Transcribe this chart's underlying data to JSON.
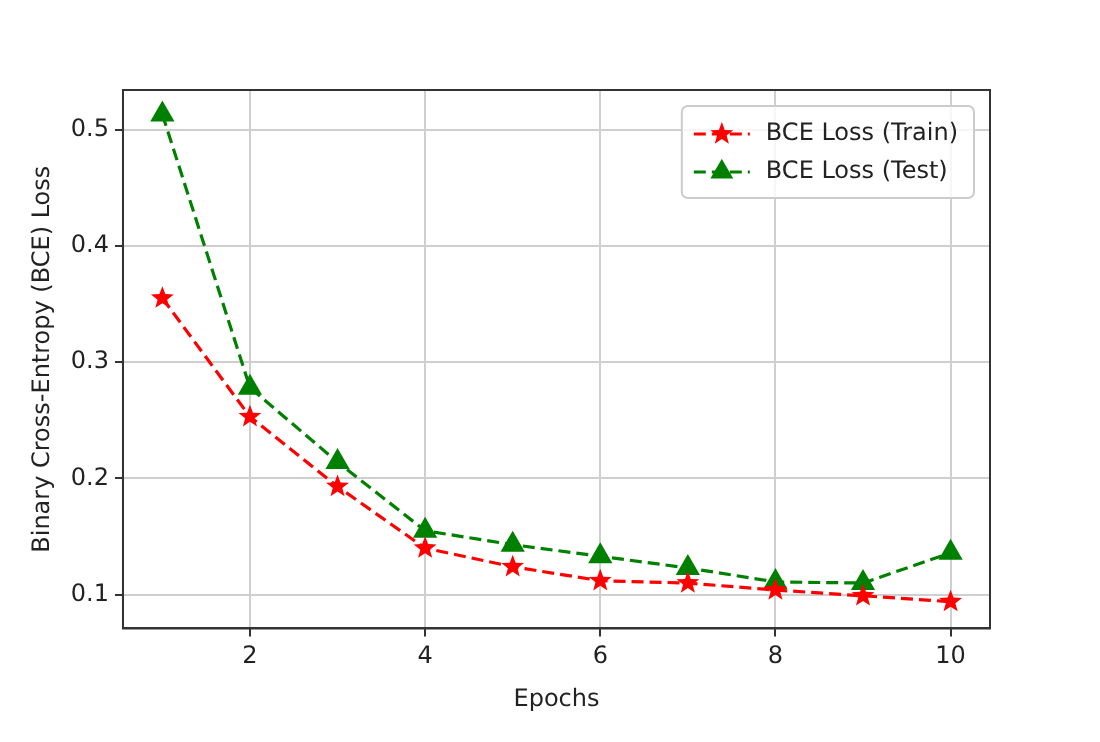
{
  "chart_data": {
    "type": "line",
    "xlabel": "Epochs",
    "ylabel": "Binary Cross-Entropy (BCE) Loss",
    "x": [
      1,
      2,
      3,
      4,
      5,
      6,
      7,
      8,
      9,
      10
    ],
    "series": [
      {
        "name": "BCE Loss (Train)",
        "color": "#ff0000",
        "marker": "star",
        "values": [
          0.355,
          0.253,
          0.193,
          0.14,
          0.124,
          0.112,
          0.11,
          0.104,
          0.099,
          0.094
        ]
      },
      {
        "name": "BCE Loss (Test)",
        "color": "#008000",
        "marker": "triangle",
        "values": [
          0.513,
          0.278,
          0.214,
          0.155,
          0.143,
          0.133,
          0.123,
          0.111,
          0.11,
          0.136
        ]
      }
    ],
    "xlim": [
      0.55,
      10.45
    ],
    "xticks": [
      2,
      4,
      6,
      8,
      10
    ],
    "ylim": [
      0.071,
      0.534
    ],
    "yticks": [
      0.1,
      0.2,
      0.3,
      0.4,
      0.5
    ],
    "grid": true,
    "legend": "top right",
    "line_style": "dashed"
  }
}
